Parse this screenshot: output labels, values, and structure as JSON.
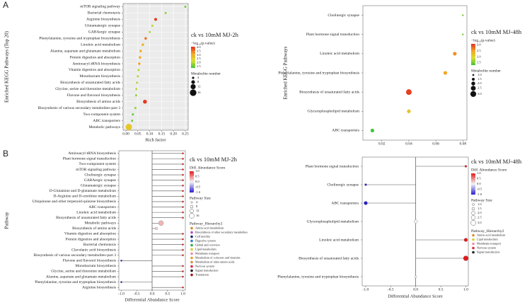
{
  "panel_labels": [
    "A",
    "B"
  ],
  "chart_data": [
    {
      "type": "bubble",
      "title": "ck vs 10mM MJ-2h",
      "x_label": "Rich factor",
      "y_label": "Enriched KEGG Pathways (Top 20)",
      "categories": [
        "mTOR signaling pathway",
        "Bacterial chemotaxis",
        "Arginine biosynthesis",
        "Glutamatergic synapse",
        "GABAergic synapse",
        "Phenylalanine, tyrosine and tryptophan biosynthesis",
        "Linoleic acid metabolism",
        "Alanine, aspartate and glutamate metabolism",
        "Protein digestion and absorption",
        "Aminoacyl-tRNA biosynthesis",
        "Vitamin digestion and absorption",
        "Monobactam biosynthesis",
        "Biosynthesis of unsaturated fatty acids",
        "Glycine, serine and threonine metabolism",
        "Flavone and flavonol biosynthesis",
        "Biosynthesis of amino acids",
        "Biosynthesis of various secondary metabolites-part 3",
        "Two-component system",
        "ABC transporters",
        "Metabolic pathways"
      ],
      "values": [
        0.25,
        0.167,
        0.125,
        0.111,
        0.1,
        0.083,
        0.071,
        0.062,
        0.059,
        0.056,
        0.053,
        0.05,
        0.047,
        0.044,
        0.043,
        0.08,
        0.04,
        0.029,
        0.026,
        0.012
      ],
      "color_values": [
        1.6,
        1.8,
        4.0,
        2.0,
        2.0,
        3.6,
        3.0,
        3.0,
        3.1,
        3.2,
        2.0,
        2.0,
        2.0,
        2.0,
        1.8,
        4.0,
        1.8,
        1.5,
        1.6,
        2.6
      ],
      "sizes": [
        4,
        4,
        6,
        4,
        4,
        5,
        5,
        5,
        5,
        5,
        4,
        4,
        4,
        4,
        4,
        9,
        4,
        4,
        4,
        16
      ],
      "xlim": [
        -0.012,
        0.262
      ],
      "xticks": [
        {
          "value": 0,
          "label": "0.00"
        },
        0.05,
        {
          "value": 0.1,
          "label": "0.10"
        },
        0.15,
        {
          "value": 0.2,
          "label": "0.20"
        },
        0.25
      ],
      "color_title": "−log₁₀(p.value)",
      "color_lim": [
        1.3,
        4.1
      ],
      "color_ticks": [
        {
          "value": 4,
          "label": "4.0"
        },
        3.5,
        {
          "value": 3,
          "label": "3.0"
        },
        2.5,
        {
          "value": 2,
          "label": "2.0"
        },
        1.5
      ],
      "color_scale": [
        "#3fc43a",
        "#d7df2a",
        "#f5a524",
        "#e42a1e"
      ],
      "size_title": "Metabolite number",
      "size_ticks": [
        4,
        8,
        12,
        16
      ],
      "grid": true
    },
    {
      "type": "bubble",
      "title": "ck vs 10mM MJ-48h",
      "y_label": "Enriched KEGG Pathways",
      "categories": [
        "Cholinergic synapse",
        "Plant hormone signal transduction",
        "Linoleic acid metabolism",
        "Phenylalanine, tyrosine and tryptophan biosynthesis",
        "Biosynthesis of unsaturated fatty acids",
        "Glycerophospholipid metabolism",
        "ABC transporters"
      ],
      "values": [
        0.08,
        0.08,
        0.074,
        0.067,
        0.04,
        0.04,
        0.013
      ],
      "color_values": [
        1.5,
        1.5,
        2.6,
        2.5,
        3.0,
        2.2,
        1.3
      ],
      "sizes": [
        1,
        1,
        2,
        2,
        3,
        2,
        2
      ],
      "xlim": [
        0.006,
        0.083
      ],
      "xticks": [
        0.02,
        0.04,
        0.06,
        0.08
      ],
      "color_title": "−log₁₀(p.value)",
      "color_lim": [
        1.3,
        3.1
      ],
      "color_ticks": [
        {
          "value": 3,
          "label": "3.0"
        },
        2.5,
        {
          "value": 2,
          "label": "2.0"
        },
        1.5
      ],
      "color_scale": [
        "#3fc43a",
        "#d7df2a",
        "#f5a524",
        "#e42a1e"
      ],
      "size_title": "Metabolite number",
      "size_ticks": [
        {
          "value": 1,
          "label": "1.0"
        },
        1.5,
        {
          "value": 2,
          "label": "2.0"
        },
        2.5,
        {
          "value": 3,
          "label": "3.0"
        }
      ],
      "grid": false
    },
    {
      "type": "lollipop",
      "title": "ck vs 10mM MJ-2h",
      "x_label": "Differential Abundance Score",
      "y_label": "Pathway",
      "categories": [
        "Aminoacyl-tRNA biosynthesis",
        "Plant hormone signal transduction",
        "Two-component system",
        "mTOR signaling pathway",
        "Cholinergic synapse",
        "GABAergic synapse",
        "Glutamatergic synapse",
        "D-Glutamine and D-glutamate metabolism",
        "D-Arginine and D-ornithine metabolism",
        "Ubiquinone and other terpenoid-quinone biosynthesis",
        "ABC transporters",
        "Linoleic acid metabolism",
        "Biosynthesis of unsaturated fatty acids",
        "Metabolic pathways",
        "Biosynthesis of amino acids",
        "Vitamin digestion and absorption",
        "Protein digestion and absorption",
        "Bacterial chemotaxis",
        "Clavulanic acid biosynthesis",
        "Biosynthesis of various secondary metabolites-part 3",
        "Flavone and flavonol biosynthesis",
        "Monobactam biosynthesis",
        "Glycine, serine and threonine metabolism",
        "Alanine, aspartate and glutamate metabolism",
        "Phenylalanine, tyrosine and tryptophan biosynthesis",
        "Arginine biosynthesis"
      ],
      "values": [
        1,
        1,
        1,
        1,
        1,
        1,
        1,
        1,
        1,
        1,
        1,
        1,
        1,
        0.29,
        0.14,
        1,
        1,
        1,
        1,
        1,
        -1,
        1,
        1,
        1,
        -1,
        1
      ],
      "sizes": [
        4,
        4,
        4,
        4,
        4,
        4,
        4,
        4,
        4,
        4,
        4,
        4,
        4,
        16,
        8,
        4,
        4,
        4,
        4,
        4,
        4,
        4,
        4,
        4,
        4,
        4
      ],
      "label_colors": [
        "#9b1c1c",
        "#222222",
        "#222222",
        "#222222",
        "#e0283a",
        "#e0283a",
        "#e0283a",
        "#e08a45",
        "#e08a45",
        "#e8a030",
        "#f08ab0",
        "#d4d12a",
        "#d4d12a",
        "#2db34a",
        "#2db34a",
        "#2b7bd4",
        "#2b7bd4",
        "#1f2a7a",
        "#b34fc6",
        "#b34fc6",
        "#b34fc6",
        "#b34fc6",
        "#d98c2e",
        "#d98c2e",
        "#d98c2e",
        "#d98c2e"
      ],
      "xlim": [
        -1.08,
        1.08
      ],
      "xticks": [
        {
          "value": -1,
          "label": "-1.0"
        },
        -0.5,
        {
          "value": 0,
          "label": "0.0"
        },
        0.5,
        {
          "value": 1,
          "label": "1.0"
        }
      ],
      "color_title": "Diff. Abundance Score",
      "color_lim": [
        -1,
        1
      ],
      "color_ticks": [
        {
          "value": 1,
          "label": "1.0"
        },
        0.5,
        {
          "value": 0,
          "label": "0.0"
        },
        -0.5,
        {
          "value": -1,
          "label": "-1.0"
        }
      ],
      "color_scale": [
        "#2a1fd0",
        "#f4f4f4",
        "#e31a1c"
      ],
      "size_title": "Pathway Size",
      "size_ticks": [
        4,
        8,
        12,
        16
      ],
      "hierarchy_title": "Pathway_Hierarchy2",
      "hierarchy": [
        {
          "name": "Amino acid metabolism",
          "color": "#d98c2e"
        },
        {
          "name": "Biosynthesis of other secondary metabolites",
          "color": "#b34fc6"
        },
        {
          "name": "Cell motility",
          "color": "#1f2a7a"
        },
        {
          "name": "Digestive system",
          "color": "#2b7bd4"
        },
        {
          "name": "Global and overview",
          "color": "#2db34a"
        },
        {
          "name": "Lipid metabolism",
          "color": "#d4d12a"
        },
        {
          "name": "Membrane transport",
          "color": "#f08ab0"
        },
        {
          "name": "Metabolism of cofactors and vitamins",
          "color": "#e8a030"
        },
        {
          "name": "Metabolism of other amino acids",
          "color": "#e08a45"
        },
        {
          "name": "Nervous system",
          "color": "#e0283a"
        },
        {
          "name": "Signal transduction",
          "color": "#222222"
        },
        {
          "name": "Translation",
          "color": "#9b1c1c"
        }
      ]
    },
    {
      "type": "lollipop",
      "title": "ck vs 10mM MJ-48h",
      "x_label": "Differential Abundance Score",
      "categories": [
        "Plant hormone signal transduction",
        "Cholinergic synapse",
        "ABC transporters",
        "Glycerophospholipid metabolism",
        "Linoleic acid metabolism",
        "Biosynthesis of unsaturated fatty acids",
        "Phenylalanine, tyrosine and tryptophan biosynthesis"
      ],
      "values": [
        1,
        -1,
        -1,
        0,
        1,
        1,
        0
      ],
      "sizes": [
        1,
        1,
        2,
        2,
        2,
        3,
        1
      ],
      "label_colors": [
        "#222222",
        "#e0283a",
        "#f08ab0",
        "#d4d12a",
        "#d4d12a",
        "#d4d12a",
        "#9a6a3a"
      ],
      "xlim": [
        -1.07,
        1.05
      ],
      "xticks": [
        {
          "value": -1,
          "label": "-1.0"
        },
        -0.5,
        {
          "value": 0,
          "label": "0.0"
        },
        0.5,
        {
          "value": 1,
          "label": "1.0"
        }
      ],
      "color_title": "Diff. Abundance Score",
      "color_lim": [
        -1,
        1
      ],
      "color_ticks": [
        {
          "value": 1,
          "label": "1.0"
        },
        0.5,
        {
          "value": 0,
          "label": "0.0"
        },
        -0.5,
        {
          "value": -1,
          "label": "-1.0"
        }
      ],
      "color_scale": [
        "#2a1fd0",
        "#f4f4f4",
        "#e31a1c"
      ],
      "size_title": "Pathway Size",
      "size_ticks": [
        {
          "value": 1,
          "label": "1.0"
        },
        1.5,
        {
          "value": 2,
          "label": "2.0"
        },
        2.5,
        {
          "value": 3,
          "label": "3.0"
        }
      ],
      "hierarchy_title": "Pathway_Hierarchy2",
      "hierarchy": [
        {
          "name": "Amino acid metabolism",
          "color": "#d98c2e"
        },
        {
          "name": "Lipid metabolism",
          "color": "#d4d12a"
        },
        {
          "name": "Membrane transport",
          "color": "#f08ab0"
        },
        {
          "name": "Nervous system",
          "color": "#e0283a"
        },
        {
          "name": "Signal transduction",
          "color": "#222222"
        }
      ]
    }
  ]
}
